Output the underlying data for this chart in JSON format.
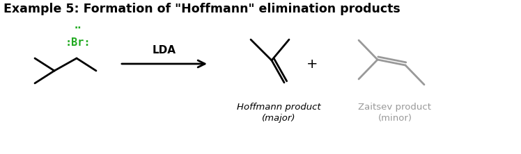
{
  "title": "Example 5: Formation of \"Hoffmann\" elimination products",
  "title_fontsize": 12.5,
  "title_fontweight": "bold",
  "background_color": "#ffffff",
  "black": "#000000",
  "green": "#22aa22",
  "gray": "#999999",
  "reagent": "LDA",
  "plus": "+",
  "hoffmann_label_line1": "Hoffmann product",
  "hoffmann_label_line2": "(major)",
  "zaitsev_label_line1": "Zaitsev product",
  "zaitsev_label_line2": "(minor)",
  "lw": 2.0
}
